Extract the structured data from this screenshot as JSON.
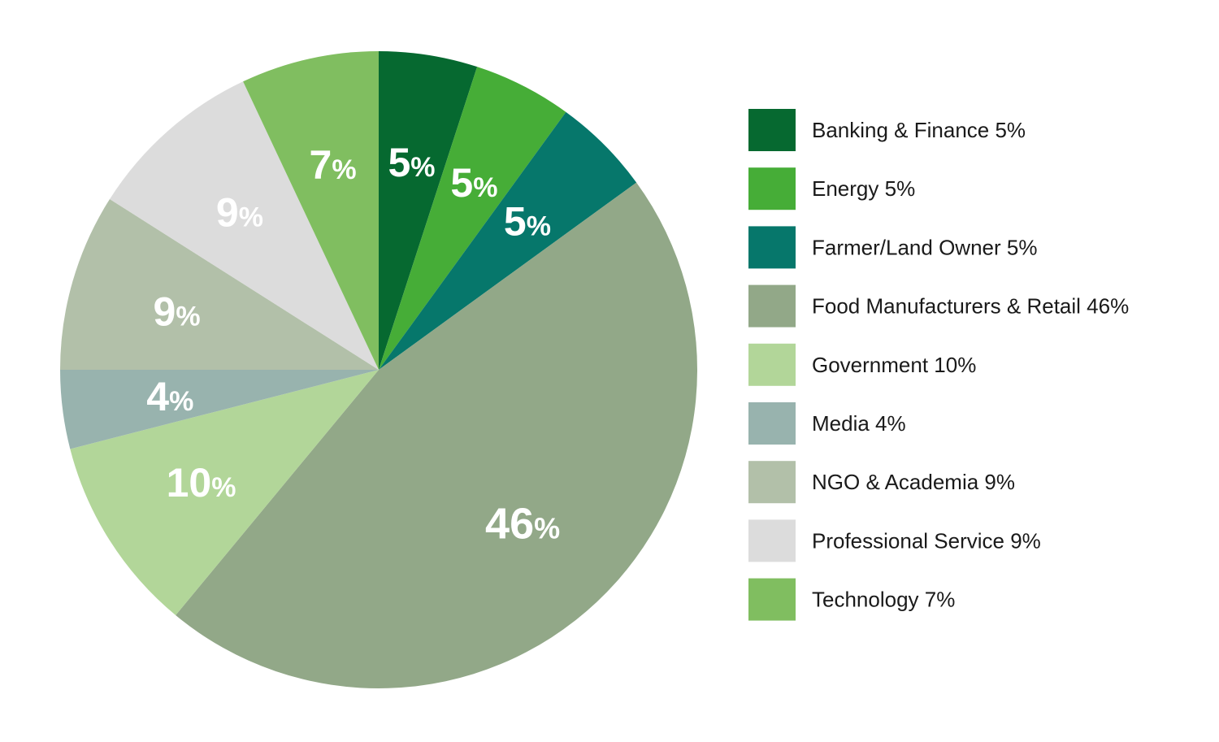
{
  "chart_data": {
    "type": "pie",
    "title": "",
    "start_angle_deg": 0,
    "direction": "clockwise",
    "slices": [
      {
        "label": "Banking & Finance",
        "value": 5,
        "display": "5",
        "unit": "%",
        "legend": "Banking & Finance 5%",
        "color": "#066930"
      },
      {
        "label": "Energy",
        "value": 5,
        "display": "5",
        "unit": "%",
        "legend": "Energy 5%",
        "color": "#46ad37"
      },
      {
        "label": "Farmer/Land Owner",
        "value": 5,
        "display": "5",
        "unit": "%",
        "legend": "Farmer/Land Owner 5%",
        "color": "#06776b"
      },
      {
        "label": "Food Manufacturers & Retail",
        "value": 46,
        "display": "46",
        "unit": "%",
        "legend": "Food Manufacturers & Retail 46%",
        "color": "#92a888"
      },
      {
        "label": "Government",
        "value": 10,
        "display": "10",
        "unit": "%",
        "legend": "Government 10%",
        "color": "#b2d699"
      },
      {
        "label": "Media",
        "value": 4,
        "display": "4",
        "unit": "%",
        "legend": "Media 4%",
        "color": "#98b3ae"
      },
      {
        "label": "NGO & Academia",
        "value": 9,
        "display": "9",
        "unit": "%",
        "legend": "NGO & Academia 9%",
        "color": "#b2c0a9"
      },
      {
        "label": "Professional Service",
        "value": 9,
        "display": "9",
        "unit": "%",
        "legend": "Professional Service 9%",
        "color": "#dcdcdc"
      },
      {
        "label": "Technology",
        "value": 7,
        "display": "7",
        "unit": "%",
        "legend": "Technology 7%",
        "color": "#80be60"
      }
    ],
    "legend_position": "right"
  }
}
